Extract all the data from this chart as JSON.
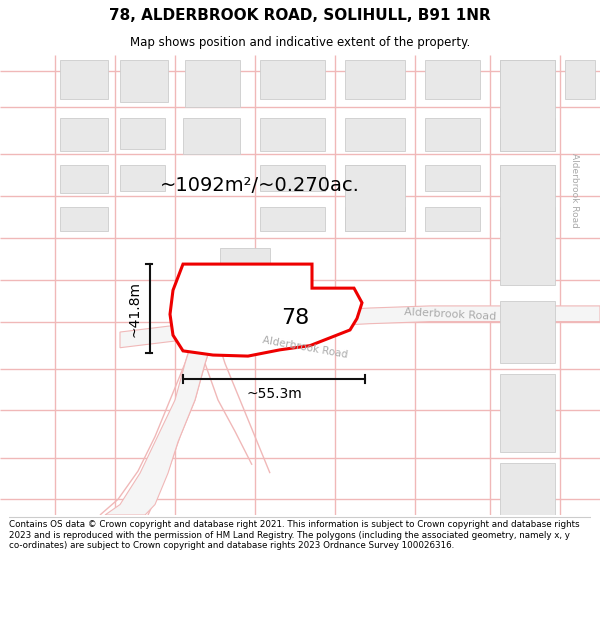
{
  "title": "78, ALDERBROOK ROAD, SOLIHULL, B91 1NR",
  "subtitle": "Map shows position and indicative extent of the property.",
  "area_label": "~1092m²/~0.270ac.",
  "width_label": "~55.3m",
  "height_label": "~41.8m",
  "number_label": "78",
  "road_label_diag": "Alderbrook Road",
  "road_label_horiz": "Alderbrook Road",
  "road_label_vert": "Alderbrook Road",
  "footer": "Contains OS data © Crown copyright and database right 2021. This information is subject to Crown copyright and database rights 2023 and is reproduced with the permission of HM Land Registry. The polygons (including the associated geometry, namely x, y co-ordinates) are subject to Crown copyright and database rights 2023 Ordnance Survey 100026316.",
  "bg_color": "#ffffff",
  "road_line_color": "#f0b8b8",
  "road_outline_color": "#d8d8d8",
  "building_fill": "#e8e8e8",
  "building_edge": "#cccccc",
  "highlight_color": "#ee0000",
  "text_color": "#000000",
  "road_text_color": "#aaaaaa",
  "dim_line_color": "#111111"
}
